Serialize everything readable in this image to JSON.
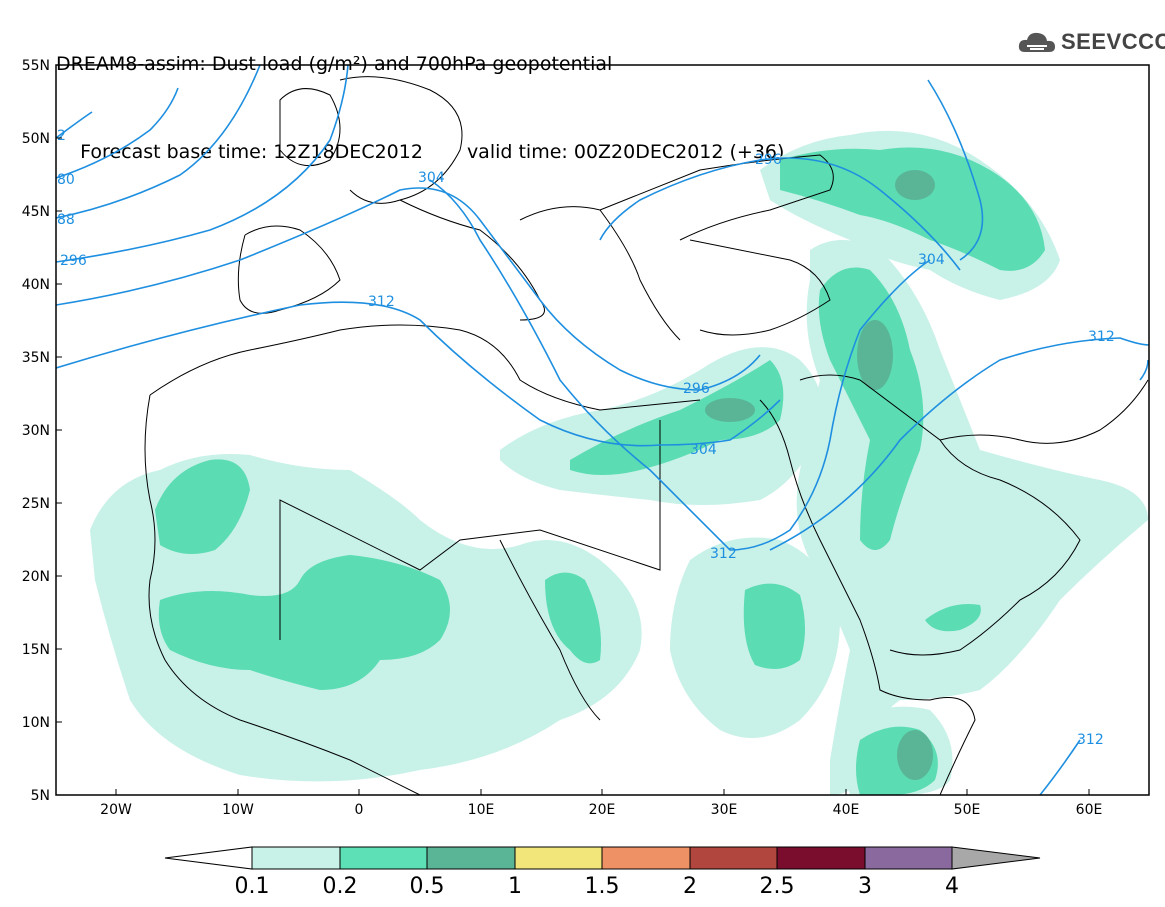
{
  "title": {
    "line1": "DREAM8-assim: Dust load (g/m²) and 700hPa geopotential",
    "base_time": "Forecast base time: 12Z18DEC2012",
    "valid_time": "valid time: 00Z20DEC2012 (+36)"
  },
  "logo": {
    "text": "SEEVCCC",
    "icon": "cloud-logo-icon"
  },
  "map": {
    "lat_labels": [
      "55N",
      "50N",
      "45N",
      "40N",
      "35N",
      "30N",
      "25N",
      "20N",
      "15N",
      "10N",
      "5N"
    ],
    "lon_labels": [
      "20W",
      "10W",
      "0",
      "10E",
      "20E",
      "30E",
      "40E",
      "50E",
      "60E"
    ],
    "contour_labels": [
      "2",
      "80",
      "88",
      "296",
      "304",
      "312",
      "296",
      "304",
      "296",
      "304",
      "312",
      "312",
      "312"
    ],
    "colors": {
      "contour": "#1e8fe0",
      "dust_01": "#c8f1e8",
      "dust_02": "#5bdcb2",
      "dust_05": "#5ab596"
    }
  },
  "colorbar": {
    "labels": [
      "0.1",
      "0.2",
      "0.5",
      "1",
      "1.5",
      "2",
      "2.5",
      "3",
      "4"
    ],
    "colors": [
      "#ffffff",
      "#c8f1e8",
      "#5ee0b6",
      "#5ab596",
      "#f2e67a",
      "#ee9266",
      "#b0463e",
      "#7a0c2e",
      "#8a6a9e",
      "#a8a8a8"
    ]
  }
}
